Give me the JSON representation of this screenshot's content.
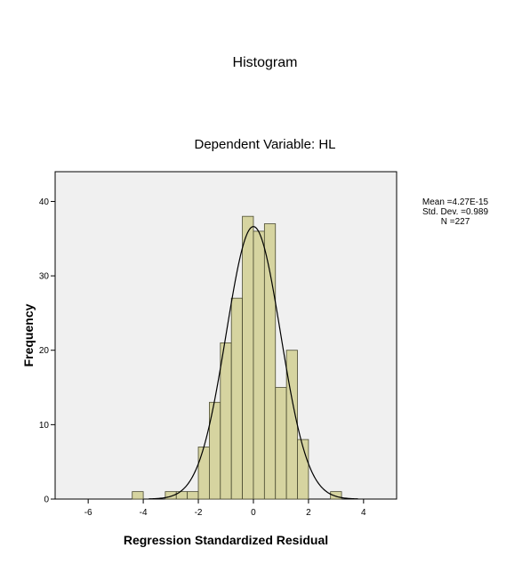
{
  "title": "Histogram",
  "chart_data": {
    "type": "bar",
    "subtitle": "Dependent Variable: HL",
    "xlabel": "Regression Standardized Residual",
    "ylabel": "Frequency",
    "xlim": [
      -7.2,
      5.2
    ],
    "ylim": [
      0,
      44
    ],
    "x_ticks": [
      -6,
      -4,
      -2,
      0,
      2,
      4
    ],
    "y_ticks": [
      0,
      10,
      20,
      30,
      40
    ],
    "bin_width": 0.4,
    "bins": [
      {
        "start": -4.4,
        "count": 1
      },
      {
        "start": -3.2,
        "count": 1
      },
      {
        "start": -2.8,
        "count": 1
      },
      {
        "start": -2.4,
        "count": 1
      },
      {
        "start": -2.0,
        "count": 7
      },
      {
        "start": -1.6,
        "count": 13
      },
      {
        "start": -1.2,
        "count": 21
      },
      {
        "start": -0.8,
        "count": 27
      },
      {
        "start": -0.4,
        "count": 38
      },
      {
        "start": 0.0,
        "count": 36
      },
      {
        "start": 0.4,
        "count": 37
      },
      {
        "start": 0.8,
        "count": 15
      },
      {
        "start": 1.2,
        "count": 20
      },
      {
        "start": 1.6,
        "count": 8
      },
      {
        "start": 2.8,
        "count": 1
      }
    ],
    "normal_curve": {
      "mean": 4.27e-15,
      "std_dev": 0.989,
      "n": 227
    },
    "stats_text": {
      "mean": "Mean =4.27E-15",
      "std_dev": "Std. Dev. =0.989",
      "n": "N =227"
    },
    "colors": {
      "bar_fill": "#d6d4a0",
      "bar_stroke": "#4a4a30",
      "plot_background": "#f0f0f0",
      "curve": "#000000"
    },
    "grid": false
  }
}
